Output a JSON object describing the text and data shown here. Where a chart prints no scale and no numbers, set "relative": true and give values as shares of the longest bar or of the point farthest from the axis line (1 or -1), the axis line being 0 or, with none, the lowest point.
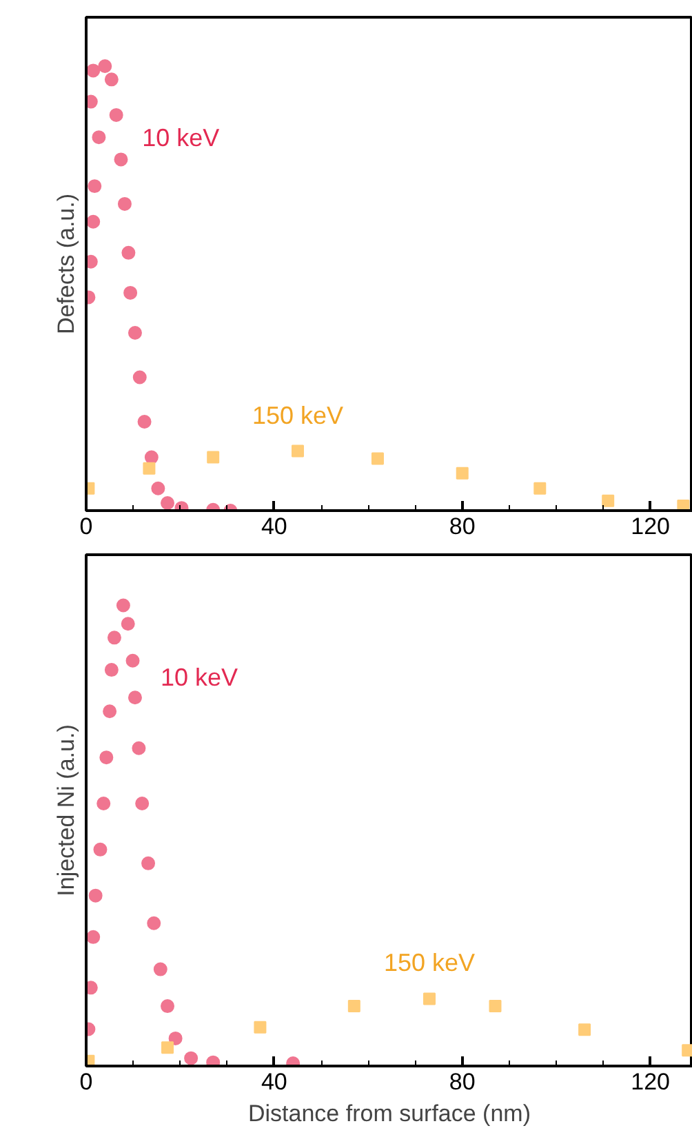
{
  "chart_data": [
    {
      "type": "scatter",
      "ylabel": "Defects (a.u.)",
      "relative": true,
      "xlim": [
        0,
        129
      ],
      "tick_labels": "x",
      "xticks": [
        0,
        {
          "value": 10,
          "label": null
        },
        {
          "value": 20,
          "label": null
        },
        {
          "value": 30,
          "label": null
        },
        40,
        {
          "value": 50,
          "label": null
        },
        {
          "value": 60,
          "label": null
        },
        {
          "value": 70,
          "label": null
        },
        80,
        {
          "value": 90,
          "label": null
        },
        {
          "value": 100,
          "label": null
        },
        {
          "value": 110,
          "label": null
        },
        120
      ],
      "series": [
        {
          "name": "10 keV",
          "color": "#f07590",
          "marker": "circle",
          "x": [
            0.5,
            1,
            1.5,
            1.8,
            2.7,
            1,
            1.5,
            4,
            5.4,
            6.4,
            7.4,
            8.2,
            9,
            9.4,
            10.4,
            11.4,
            12.4,
            13.9,
            15.3,
            17.3,
            20.3,
            27,
            30.7
          ],
          "values": [
            0.48,
            0.56,
            0.65,
            0.73,
            0.84,
            0.92,
            0.99,
            1.0,
            0.97,
            0.89,
            0.79,
            0.69,
            0.58,
            0.49,
            0.4,
            0.3,
            0.2,
            0.12,
            0.05,
            0.017,
            0.006,
            0.002,
            0
          ]
        },
        {
          "name": "150 keV",
          "color": "#ffcc77",
          "marker": "square",
          "x": [
            0.5,
            13.4,
            27,
            45,
            62,
            80,
            96.5,
            111,
            127
          ],
          "values": [
            0.05,
            0.095,
            0.12,
            0.134,
            0.117,
            0.084,
            0.05,
            0.022,
            0.011
          ]
        }
      ]
    },
    {
      "type": "scatter",
      "ylabel": "Injected Ni (a.u.)",
      "xlabel": "Distance from surface (nm)",
      "relative": true,
      "xlim": [
        0,
        129
      ],
      "tick_labels": "x",
      "xticks": [
        0,
        {
          "value": 10,
          "label": null
        },
        {
          "value": 20,
          "label": null
        },
        {
          "value": 30,
          "label": null
        },
        40,
        {
          "value": 50,
          "label": null
        },
        {
          "value": 60,
          "label": null
        },
        {
          "value": 70,
          "label": null
        },
        80,
        {
          "value": 90,
          "label": null
        },
        {
          "value": 100,
          "label": null
        },
        {
          "value": 110,
          "label": null
        },
        120
      ],
      "series": [
        {
          "name": "10 keV",
          "color": "#f07590",
          "marker": "circle",
          "x": [
            0.5,
            1,
            1.5,
            2,
            3,
            3.7,
            4.3,
            5,
            5.4,
            6,
            7.9,
            8.9,
            9.9,
            10.4,
            11.2,
            11.9,
            13.2,
            14.4,
            15.8,
            17.3,
            19,
            22.3,
            27,
            44
          ],
          "values": [
            0.08,
            0.17,
            0.28,
            0.37,
            0.47,
            0.57,
            0.67,
            0.77,
            0.86,
            0.93,
            1.0,
            0.96,
            0.88,
            0.8,
            0.69,
            0.57,
            0.44,
            0.31,
            0.21,
            0.13,
            0.06,
            0.017,
            0.008,
            0.006
          ]
        },
        {
          "name": "150 keV",
          "color": "#ffcc77",
          "marker": "square",
          "x": [
            0.5,
            17.3,
            37,
            57,
            73,
            87,
            106,
            128
          ],
          "values": [
            0.011,
            0.04,
            0.084,
            0.13,
            0.146,
            0.13,
            0.079,
            0.034
          ]
        }
      ]
    }
  ]
}
